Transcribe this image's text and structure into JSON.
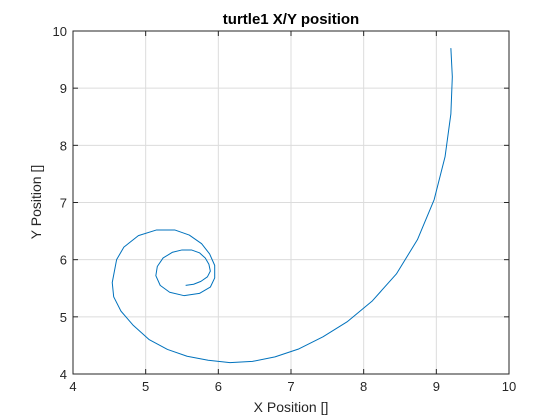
{
  "chart_data": {
    "type": "line",
    "title": "turtle1 X/Y position",
    "xlabel": "X Position []",
    "ylabel": "Y Position []",
    "xlim": [
      4,
      10
    ],
    "ylim": [
      4,
      10
    ],
    "xticks": [
      "4",
      "5",
      "6",
      "7",
      "8",
      "9",
      "10"
    ],
    "yticks": [
      "4",
      "5",
      "6",
      "7",
      "8",
      "9",
      "10"
    ],
    "grid": true,
    "colors": {
      "series": "#0072bd",
      "grid": "#dcdcdc",
      "axis": "#262626"
    },
    "series": [
      {
        "x": [
          5.55,
          5.66,
          5.76,
          5.85,
          5.89,
          5.87,
          5.82,
          5.74,
          5.63,
          5.5,
          5.37,
          5.24,
          5.16,
          5.14,
          5.2,
          5.33,
          5.53,
          5.74,
          5.89,
          5.95,
          5.95,
          5.88,
          5.77,
          5.6,
          5.4,
          5.15,
          4.9,
          4.7,
          4.6,
          4.54,
          4.56,
          4.66,
          4.83,
          5.05,
          5.3,
          5.57,
          5.86,
          6.16,
          6.47,
          6.78,
          7.11,
          7.44,
          7.78,
          8.12,
          8.45,
          8.74,
          8.97,
          9.12,
          9.2,
          9.22,
          9.2
        ],
        "y": [
          5.55,
          5.57,
          5.62,
          5.7,
          5.8,
          5.92,
          6.03,
          6.12,
          6.17,
          6.17,
          6.13,
          6.03,
          5.88,
          5.72,
          5.55,
          5.43,
          5.37,
          5.41,
          5.52,
          5.68,
          5.9,
          6.1,
          6.28,
          6.43,
          6.52,
          6.52,
          6.42,
          6.22,
          6.0,
          5.6,
          5.35,
          5.1,
          4.85,
          4.6,
          4.43,
          4.31,
          4.24,
          4.2,
          4.22,
          4.3,
          4.44,
          4.65,
          4.92,
          5.28,
          5.75,
          6.35,
          7.05,
          7.8,
          8.55,
          9.2,
          9.7
        ]
      }
    ]
  }
}
